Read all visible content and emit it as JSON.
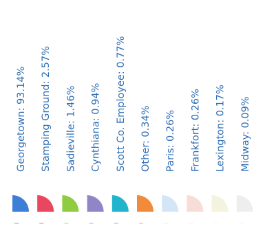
{
  "chart_data": {
    "type": "pie",
    "title": "",
    "legend_placement": "rotated vertical list",
    "label_color": "#2f6fb5",
    "entries": [
      {
        "name": "Georgetown",
        "label": "Georgetown: 93.14%",
        "value": 93.14,
        "color": "#3d7fd6"
      },
      {
        "name": "Stamping Ground",
        "label": "Stamping Ground: 2.57%",
        "value": 2.57,
        "color": "#e8475f"
      },
      {
        "name": "Sadieville",
        "label": "Sadieville: 1.46%",
        "value": 1.46,
        "color": "#8fcc42"
      },
      {
        "name": "Cynthiana",
        "label": "Cynthiana: 0.94%",
        "value": 0.94,
        "color": "#8f86c8"
      },
      {
        "name": "Scott Co. Employee",
        "label": "Scott Co. Employee: 0.77%",
        "value": 0.77,
        "color": "#22b4cc"
      },
      {
        "name": "Other",
        "label": "Other: 0.34%",
        "value": 0.34,
        "color": "#f28a3c"
      },
      {
        "name": "Paris",
        "label": "Paris: 0.26%",
        "value": 0.26,
        "color": "#d3e6f7"
      },
      {
        "name": "Frankfort",
        "label": "Frankfort: 0.26%",
        "value": 0.26,
        "color": "#f7ddd6"
      },
      {
        "name": "Lexington",
        "label": "Lexington: 0.17%",
        "value": 0.17,
        "color": "#f4f3df"
      },
      {
        "name": "Midway",
        "label": "Midway: 0.09%",
        "value": 0.09,
        "color": "#eeeeee"
      }
    ]
  }
}
